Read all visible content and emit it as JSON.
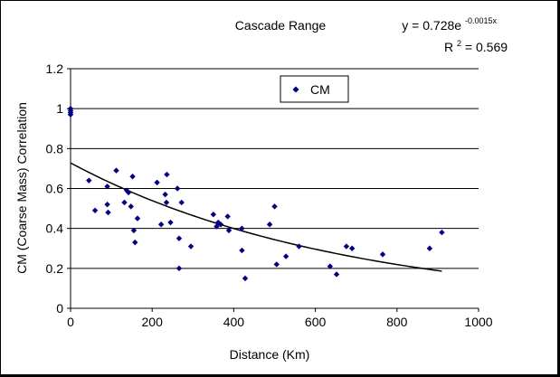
{
  "chart_data": {
    "type": "scatter",
    "title": "Cascade Range",
    "xlabel": "Distance (Km)",
    "ylabel": "CM (Coarse Mass) Correlation",
    "xlim": [
      0,
      1000
    ],
    "ylim": [
      0,
      1.2
    ],
    "x_ticks": [
      0,
      200,
      400,
      600,
      800,
      1000
    ],
    "y_ticks": [
      0,
      0.2,
      0.4,
      0.6,
      0.8,
      1,
      1.2
    ],
    "x_tick_labels": [
      "0",
      "200",
      "400",
      "600",
      "800",
      "1000"
    ],
    "y_tick_labels": [
      "0",
      "0.2",
      "0.4",
      "0.6",
      "0.8",
      "1",
      "1.2"
    ],
    "grid": "horizontal",
    "legend_position": "top-center",
    "marker_color": "#000080",
    "trend_color": "#000000",
    "series": [
      {
        "name": "CM",
        "points": [
          [
            0,
            0.98
          ],
          [
            0,
            0.99
          ],
          [
            0,
            1.0
          ],
          [
            0,
            0.97
          ],
          [
            45,
            0.64
          ],
          [
            60,
            0.49
          ],
          [
            90,
            0.61
          ],
          [
            90,
            0.52
          ],
          [
            92,
            0.48
          ],
          [
            112,
            0.69
          ],
          [
            132,
            0.53
          ],
          [
            138,
            0.59
          ],
          [
            142,
            0.58
          ],
          [
            148,
            0.51
          ],
          [
            152,
            0.66
          ],
          [
            155,
            0.39
          ],
          [
            158,
            0.33
          ],
          [
            164,
            0.45
          ],
          [
            212,
            0.63
          ],
          [
            222,
            0.42
          ],
          [
            232,
            0.57
          ],
          [
            235,
            0.53
          ],
          [
            236,
            0.67
          ],
          [
            245,
            0.43
          ],
          [
            262,
            0.6
          ],
          [
            266,
            0.35
          ],
          [
            266,
            0.2
          ],
          [
            272,
            0.53
          ],
          [
            295,
            0.31
          ],
          [
            350,
            0.47
          ],
          [
            358,
            0.41
          ],
          [
            362,
            0.43
          ],
          [
            368,
            0.42
          ],
          [
            385,
            0.46
          ],
          [
            388,
            0.39
          ],
          [
            420,
            0.29
          ],
          [
            420,
            0.4
          ],
          [
            428,
            0.15
          ],
          [
            488,
            0.42
          ],
          [
            500,
            0.51
          ],
          [
            505,
            0.22
          ],
          [
            528,
            0.26
          ],
          [
            560,
            0.31
          ],
          [
            636,
            0.21
          ],
          [
            652,
            0.17
          ],
          [
            676,
            0.31
          ],
          [
            690,
            0.3
          ],
          [
            765,
            0.27
          ],
          [
            880,
            0.3
          ],
          [
            910,
            0.38
          ]
        ]
      }
    ],
    "trendline": {
      "type": "exponential",
      "a": 0.728,
      "b": -0.0015,
      "x_range": [
        0,
        910
      ],
      "equation_prefix": "y = 0.728e",
      "equation_exponent": "-0.0015x",
      "r2_label": "R",
      "r2_superscript": "2",
      "r2_value": " = 0.569"
    }
  }
}
